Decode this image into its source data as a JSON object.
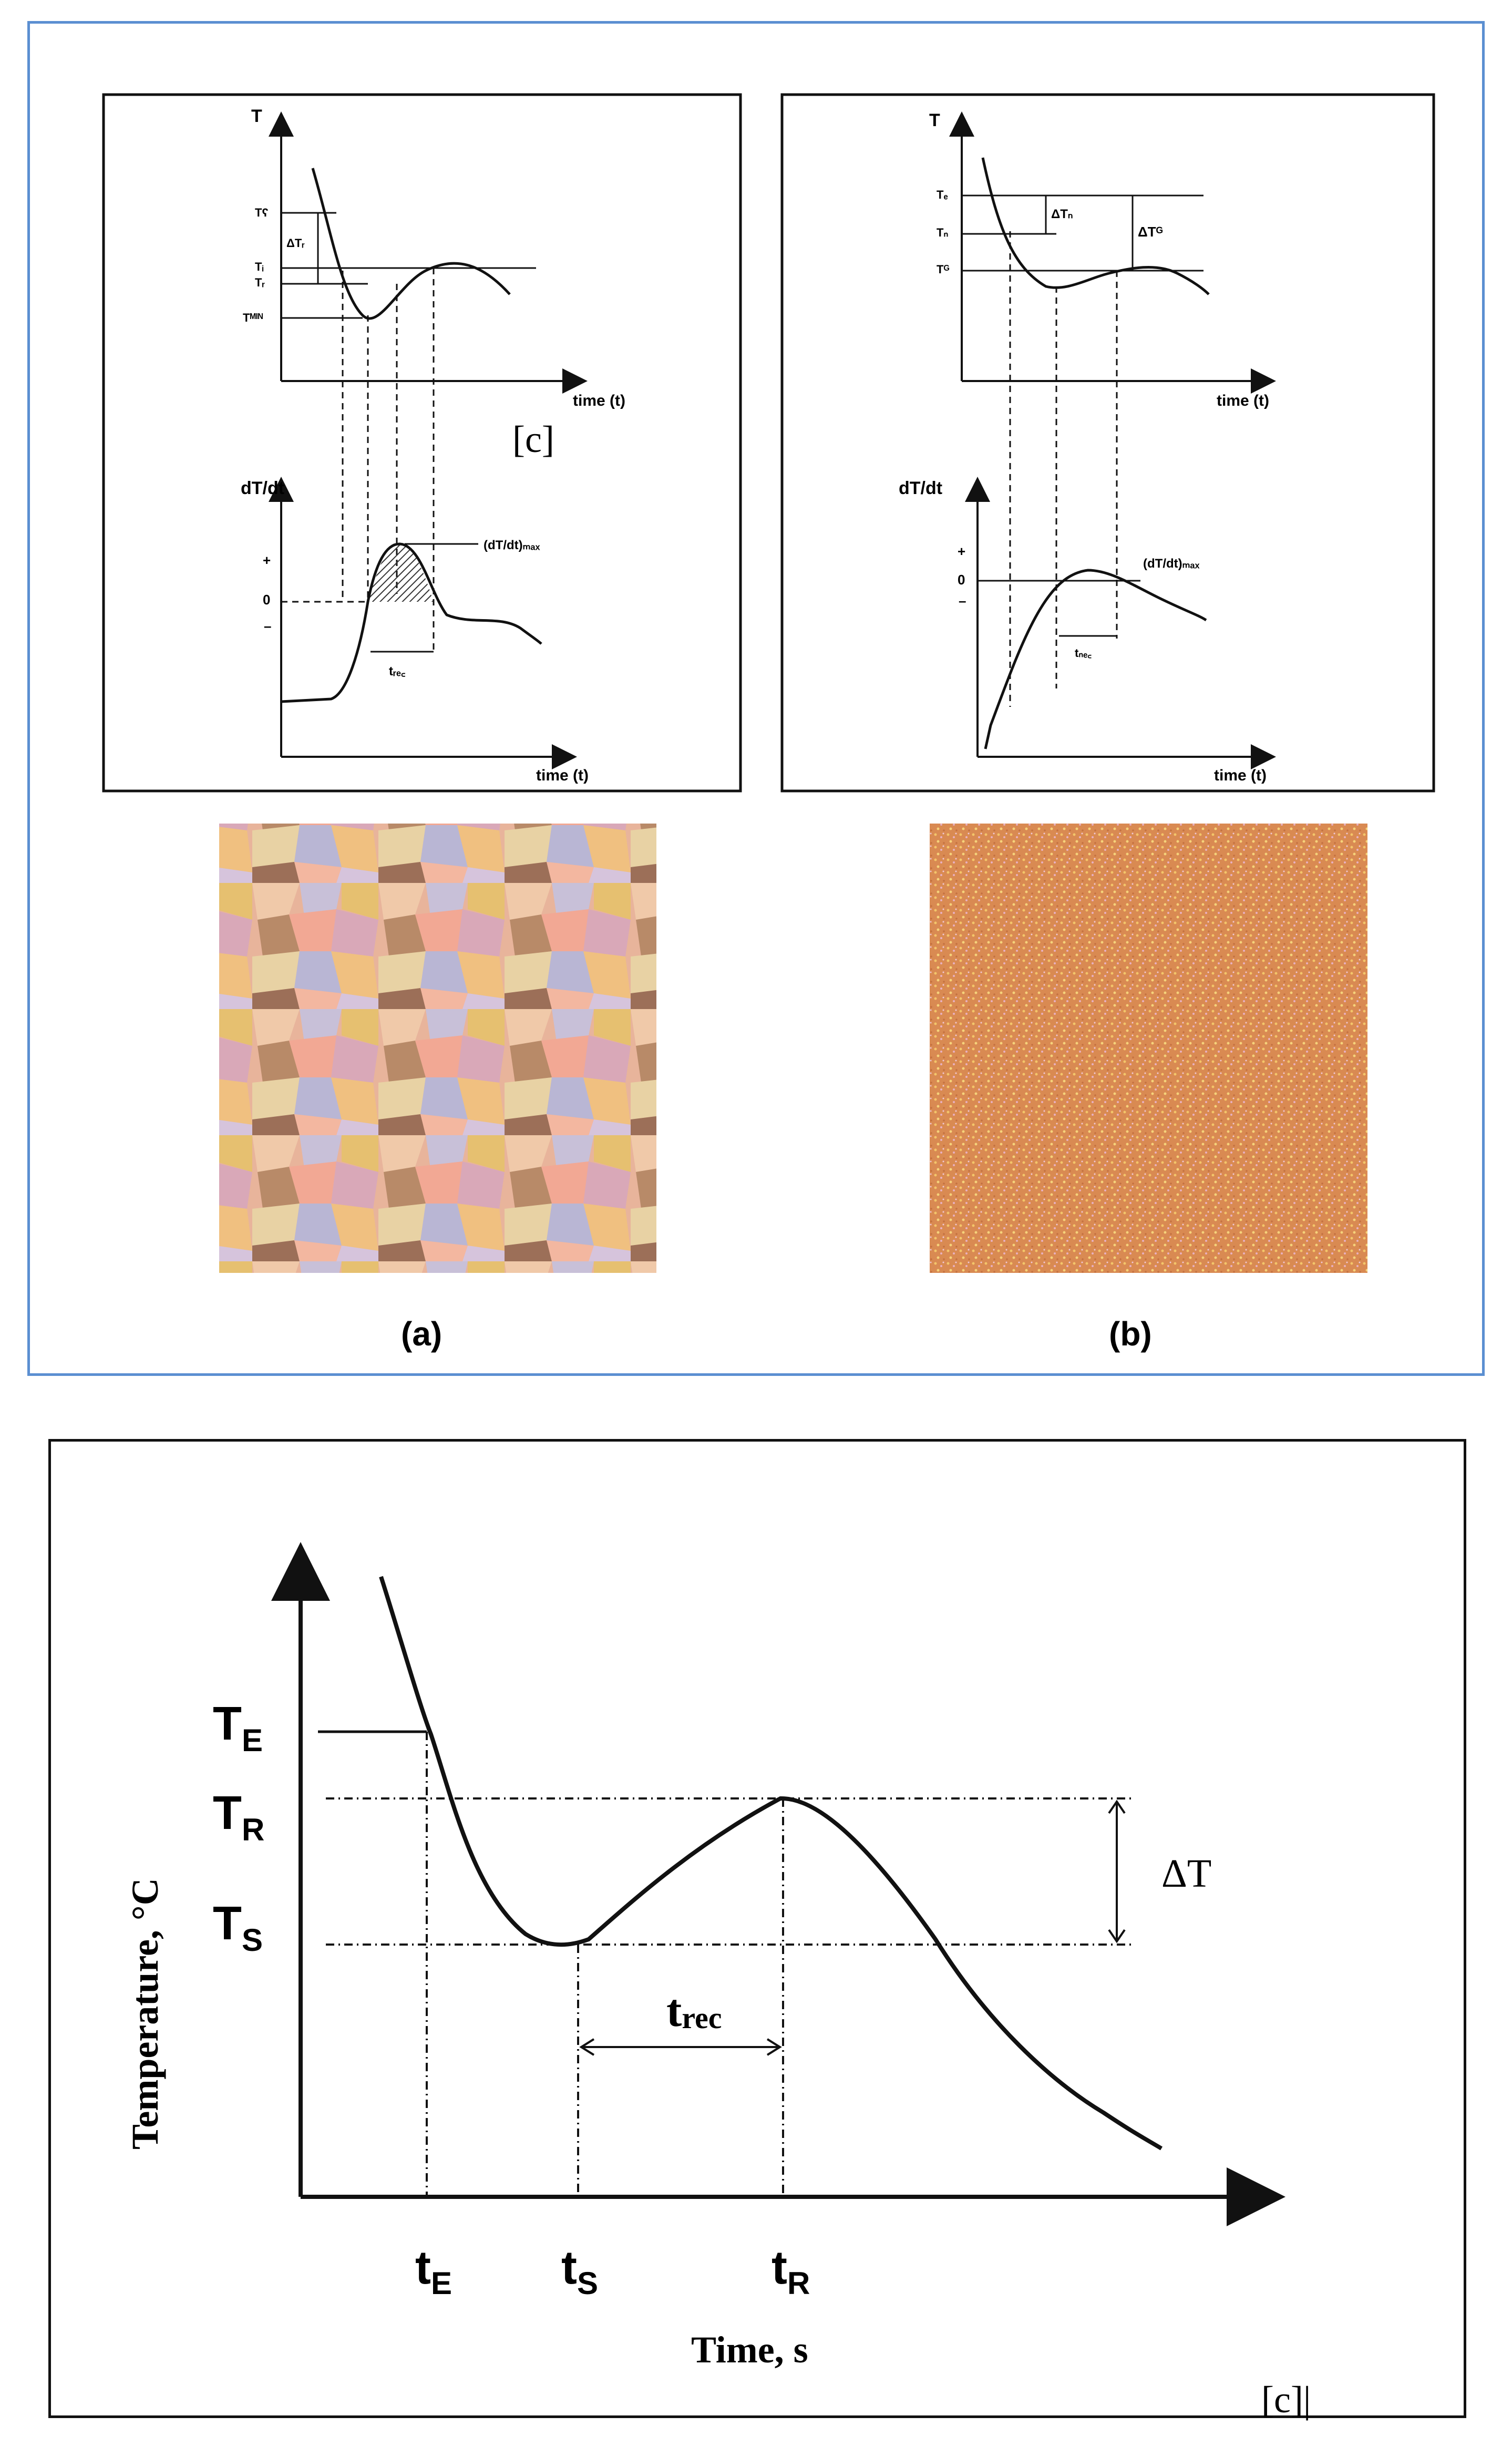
{
  "figure_top": {
    "panel_a": {
      "upper_plot": {
        "y_axis": "T",
        "x_axis": "time (t)",
        "levels": [
          "Tʕ",
          "Tᵢ",
          "Tᵣ",
          "Tᴹᴵᴺ"
        ],
        "delta_label": "ΔTᵣ",
        "citation": "[c]"
      },
      "lower_plot": {
        "y_axis": "dT/dt",
        "x_axis": "time (t)",
        "sign_plus": "+",
        "sign_zero": "0",
        "sign_minus": "–",
        "max_label": "(dT/dt)ₘₐₓ",
        "t_label": "tᵣₑ꜀"
      },
      "micrograph": "coarse-grain-micrograph",
      "caption": "(a)"
    },
    "panel_b": {
      "upper_plot": {
        "y_axis": "T",
        "x_axis": "time (t)",
        "levels": [
          "Tₑ",
          "Tₙ",
          "Tᴳ"
        ],
        "delta_n": "ΔTₙ",
        "delta_g": "ΔTᴳ"
      },
      "lower_plot": {
        "y_axis": "dT/dt",
        "x_axis": "time (t)",
        "sign_plus": "+",
        "sign_zero": "0",
        "sign_minus": "–",
        "max_label": "(dT/dt)ₘₐₓ",
        "t_label": "tₙₑ꜀"
      },
      "micrograph": "fine-grain-micrograph",
      "caption": "(b)"
    }
  },
  "figure_bottom": {
    "y_axis_label": "Temperature, °C",
    "x_axis_label": "Time, s",
    "temp_labels": {
      "TE": "T",
      "TE_sub": "E",
      "TR": "T",
      "TR_sub": "R",
      "TS": "T",
      "TS_sub": "S"
    },
    "time_labels": {
      "tE": "t",
      "tE_sub": "E",
      "tS": "t",
      "tS_sub": "S",
      "tR": "t",
      "tR_sub": "R"
    },
    "delta_T": "ΔT",
    "t_rec": "t",
    "t_rec_sub": "rec",
    "citation": "[c]|"
  },
  "colors": {
    "frame_top": "#5b8fd1",
    "line": "#111111"
  }
}
